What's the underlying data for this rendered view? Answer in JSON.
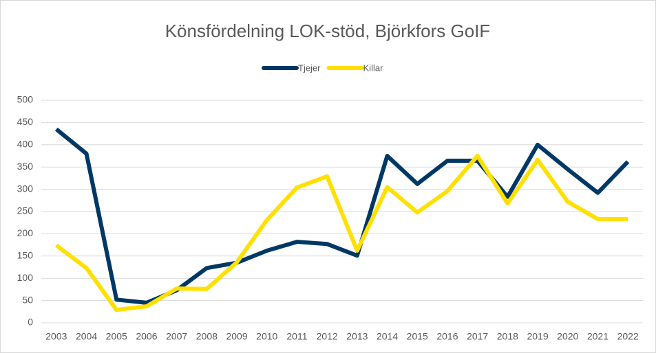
{
  "chart_data": {
    "type": "line",
    "title": "Könsfördelning LOK-stöd, Björkfors GoIF",
    "categories": [
      "2003",
      "2004",
      "2005",
      "2006",
      "2007",
      "2008",
      "2009",
      "2010",
      "2011",
      "2012",
      "2013",
      "2014",
      "2015",
      "2016",
      "2017",
      "2018",
      "2019",
      "2020",
      "2021",
      "2022"
    ],
    "series": [
      {
        "name": "Tjejer",
        "color": "#003865",
        "values": [
          435,
          380,
          52,
          45,
          73,
          123,
          135,
          162,
          182,
          177,
          151,
          375,
          312,
          364,
          364,
          283,
          400,
          345,
          292,
          362
        ]
      },
      {
        "name": "Killar",
        "color": "#ffe000",
        "values": [
          174,
          123,
          29,
          37,
          77,
          76,
          136,
          231,
          304,
          329,
          162,
          305,
          248,
          296,
          375,
          268,
          366,
          272,
          233,
          233
        ]
      }
    ],
    "ylim": [
      0,
      500
    ],
    "yticks": [
      0,
      50,
      100,
      150,
      200,
      250,
      300,
      350,
      400,
      450,
      500
    ],
    "grid": true,
    "legend": "top"
  }
}
